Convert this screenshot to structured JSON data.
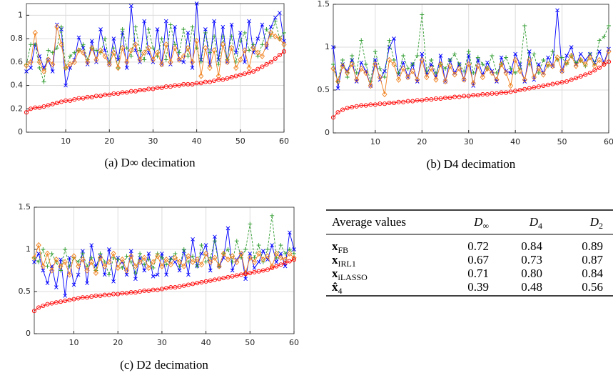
{
  "chart_data": [
    {
      "type": "line",
      "caption": "(a) D∞ decimation",
      "x": [
        1,
        2,
        3,
        4,
        5,
        6,
        7,
        8,
        9,
        10,
        11,
        12,
        13,
        14,
        15,
        16,
        17,
        18,
        19,
        20,
        21,
        22,
        23,
        24,
        25,
        26,
        27,
        28,
        29,
        30,
        31,
        32,
        33,
        34,
        35,
        36,
        37,
        38,
        39,
        40,
        41,
        42,
        43,
        44,
        45,
        46,
        47,
        48,
        49,
        50,
        51,
        52,
        53,
        54,
        55,
        56,
        57,
        58,
        59,
        60
      ],
      "xlim": [
        1,
        60
      ],
      "xticks": [
        10,
        20,
        30,
        40,
        50,
        60
      ],
      "ylim": [
        0,
        1.1
      ],
      "yticks": [
        0,
        0.2,
        0.4,
        0.6,
        0.8,
        1
      ],
      "grid": true,
      "series": [
        {
          "color": "#0000ff",
          "marker": "x",
          "dashed": false,
          "values": [
            0.52,
            0.55,
            0.75,
            0.65,
            0.55,
            0.62,
            0.52,
            0.92,
            0.88,
            0.4,
            0.55,
            0.62,
            0.81,
            0.72,
            0.58,
            0.78,
            0.6,
            0.88,
            0.7,
            0.58,
            0.8,
            0.62,
            0.85,
            0.55,
            1.08,
            0.7,
            0.6,
            0.95,
            0.68,
            0.6,
            0.88,
            0.58,
            0.95,
            0.58,
            0.9,
            0.62,
            0.6,
            0.85,
            0.55,
            1.1,
            0.62,
            0.88,
            0.58,
            0.95,
            0.62,
            0.9,
            0.6,
            0.92,
            0.68,
            0.85,
            0.6,
            0.95,
            0.68,
            0.8,
            0.92,
            0.72,
            0.9,
            0.98,
            1.02,
            0.78
          ]
        },
        {
          "color": "#2e9b2e",
          "marker": "plus",
          "dashed": true,
          "values": [
            0.58,
            0.75,
            0.75,
            0.55,
            0.43,
            0.7,
            0.68,
            0.72,
            0.9,
            0.55,
            0.65,
            0.68,
            0.7,
            0.75,
            0.62,
            0.72,
            0.7,
            0.68,
            0.8,
            0.6,
            0.72,
            0.55,
            0.88,
            0.72,
            0.65,
            0.9,
            0.7,
            0.62,
            0.88,
            0.72,
            0.65,
            0.8,
            0.62,
            0.92,
            0.75,
            0.68,
            0.88,
            0.65,
            0.9,
            0.72,
            0.6,
            0.85,
            0.68,
            0.82,
            0.58,
            0.82,
            0.62,
            0.82,
            0.6,
            0.78,
            0.85,
            0.7,
            0.75,
            0.65,
            0.75,
            0.88,
            0.82,
            0.95,
            0.8,
            0.85
          ]
        },
        {
          "color": "#f07f1a",
          "marker": "diamond",
          "dashed": false,
          "values": [
            0.57,
            0.6,
            0.85,
            0.6,
            0.52,
            0.62,
            0.58,
            0.9,
            0.75,
            0.55,
            0.58,
            0.6,
            0.7,
            0.68,
            0.6,
            0.72,
            0.62,
            0.7,
            0.65,
            0.58,
            0.68,
            0.55,
            0.72,
            0.6,
            0.7,
            0.75,
            0.62,
            0.68,
            0.72,
            0.62,
            0.68,
            0.58,
            0.75,
            0.6,
            0.72,
            0.62,
            0.65,
            0.72,
            0.6,
            0.78,
            0.48,
            0.72,
            0.55,
            0.7,
            0.48,
            0.75,
            0.6,
            0.72,
            0.55,
            0.62,
            0.7,
            0.55,
            0.72,
            0.68,
            0.65,
            0.75,
            0.85,
            0.82,
            0.8,
            0.75
          ]
        },
        {
          "color": "#ff0000",
          "marker": "circle",
          "dashed": false,
          "values": [
            0.17,
            0.2,
            0.21,
            0.21,
            0.22,
            0.23,
            0.24,
            0.25,
            0.26,
            0.27,
            0.27,
            0.28,
            0.29,
            0.29,
            0.3,
            0.3,
            0.31,
            0.31,
            0.32,
            0.32,
            0.33,
            0.33,
            0.34,
            0.34,
            0.35,
            0.35,
            0.36,
            0.36,
            0.37,
            0.37,
            0.38,
            0.38,
            0.39,
            0.39,
            0.4,
            0.4,
            0.41,
            0.41,
            0.41,
            0.42,
            0.42,
            0.43,
            0.43,
            0.44,
            0.45,
            0.45,
            0.46,
            0.47,
            0.48,
            0.49,
            0.5,
            0.51,
            0.52,
            0.54,
            0.56,
            0.58,
            0.6,
            0.63,
            0.66,
            0.69
          ]
        }
      ]
    },
    {
      "type": "line",
      "caption": "(b) D4 decimation",
      "x": [
        1,
        2,
        3,
        4,
        5,
        6,
        7,
        8,
        9,
        10,
        11,
        12,
        13,
        14,
        15,
        16,
        17,
        18,
        19,
        20,
        21,
        22,
        23,
        24,
        25,
        26,
        27,
        28,
        29,
        30,
        31,
        32,
        33,
        34,
        35,
        36,
        37,
        38,
        39,
        40,
        41,
        42,
        43,
        44,
        45,
        46,
        47,
        48,
        49,
        50,
        51,
        52,
        53,
        54,
        55,
        56,
        57,
        58,
        59,
        60
      ],
      "xlim": [
        1,
        60
      ],
      "xticks": [
        10,
        20,
        30,
        40,
        50,
        60
      ],
      "ylim": [
        0,
        1.5
      ],
      "yticks": [
        0,
        0.5,
        1,
        1.5
      ],
      "grid": true,
      "series": [
        {
          "color": "#0000ff",
          "marker": "x",
          "dashed": false,
          "values": [
            1.0,
            0.52,
            0.8,
            0.72,
            0.85,
            0.6,
            0.82,
            0.72,
            0.55,
            0.85,
            0.62,
            0.72,
            1.0,
            1.1,
            0.68,
            0.82,
            0.65,
            0.8,
            0.6,
            0.92,
            0.68,
            0.8,
            0.65,
            0.9,
            0.6,
            0.85,
            0.7,
            0.8,
            0.62,
            0.9,
            0.55,
            0.85,
            0.68,
            0.82,
            0.72,
            0.6,
            0.88,
            0.72,
            0.7,
            0.92,
            0.8,
            0.6,
            0.95,
            0.62,
            0.8,
            0.7,
            0.88,
            0.78,
            1.43,
            0.72,
            0.9,
            1.0,
            0.8,
            0.92,
            0.85,
            0.92,
            0.82,
            0.95,
            0.82,
            0.98
          ]
        },
        {
          "color": "#2e9b2e",
          "marker": "plus",
          "dashed": true,
          "values": [
            0.8,
            0.6,
            0.85,
            0.65,
            0.9,
            0.7,
            1.08,
            0.8,
            0.6,
            0.95,
            0.75,
            0.65,
            1.08,
            0.85,
            0.7,
            0.9,
            0.75,
            0.8,
            0.9,
            1.38,
            0.72,
            0.85,
            0.7,
            0.8,
            0.75,
            0.85,
            0.92,
            0.8,
            0.72,
            0.95,
            0.7,
            0.88,
            0.8,
            0.75,
            0.9,
            0.7,
            0.8,
            0.88,
            0.75,
            0.7,
            0.75,
            1.25,
            0.8,
            0.92,
            0.7,
            0.85,
            0.78,
            0.95,
            0.85,
            0.88,
            0.8,
            0.9,
            0.82,
            0.85,
            0.78,
            0.92,
            0.8,
            1.08,
            1.12,
            1.25
          ]
        },
        {
          "color": "#f07f1a",
          "marker": "diamond",
          "dashed": false,
          "values": [
            0.75,
            0.6,
            0.78,
            0.7,
            0.8,
            0.62,
            0.75,
            0.7,
            0.55,
            0.8,
            0.65,
            0.45,
            0.85,
            0.8,
            0.62,
            0.75,
            0.65,
            0.72,
            0.62,
            0.85,
            0.65,
            0.75,
            0.62,
            0.8,
            0.6,
            0.78,
            0.68,
            0.75,
            0.62,
            0.8,
            0.58,
            0.78,
            0.65,
            0.75,
            0.7,
            0.62,
            0.8,
            0.7,
            0.55,
            0.85,
            0.72,
            0.62,
            0.85,
            0.65,
            0.75,
            0.68,
            0.8,
            0.78,
            0.88,
            0.72,
            0.82,
            0.9,
            0.78,
            0.85,
            0.8,
            0.88,
            0.78,
            0.85,
            0.8,
            0.95
          ]
        },
        {
          "color": "#ff0000",
          "marker": "circle",
          "dashed": false,
          "values": [
            0.18,
            0.24,
            0.27,
            0.29,
            0.3,
            0.31,
            0.32,
            0.32,
            0.33,
            0.33,
            0.34,
            0.34,
            0.35,
            0.35,
            0.36,
            0.36,
            0.37,
            0.37,
            0.38,
            0.38,
            0.39,
            0.39,
            0.4,
            0.4,
            0.41,
            0.41,
            0.42,
            0.42,
            0.43,
            0.43,
            0.44,
            0.44,
            0.45,
            0.45,
            0.46,
            0.46,
            0.47,
            0.47,
            0.48,
            0.49,
            0.5,
            0.51,
            0.52,
            0.53,
            0.54,
            0.55,
            0.56,
            0.57,
            0.58,
            0.59,
            0.6,
            0.62,
            0.64,
            0.66,
            0.68,
            0.7,
            0.73,
            0.76,
            0.8,
            0.83
          ]
        }
      ]
    },
    {
      "type": "line",
      "caption": "(c) D2 decimation",
      "x": [
        1,
        2,
        3,
        4,
        5,
        6,
        7,
        8,
        9,
        10,
        11,
        12,
        13,
        14,
        15,
        16,
        17,
        18,
        19,
        20,
        21,
        22,
        23,
        24,
        25,
        26,
        27,
        28,
        29,
        30,
        31,
        32,
        33,
        34,
        35,
        36,
        37,
        38,
        39,
        40,
        41,
        42,
        43,
        44,
        45,
        46,
        47,
        48,
        49,
        50,
        51,
        52,
        53,
        54,
        55,
        56,
        57,
        58,
        59,
        60
      ],
      "xlim": [
        1,
        60
      ],
      "xticks": [
        10,
        20,
        30,
        40,
        50,
        60
      ],
      "ylim": [
        0,
        1.5
      ],
      "yticks": [
        0,
        0.5,
        1,
        1.5
      ],
      "grid": true,
      "series": [
        {
          "color": "#0000ff",
          "marker": "x",
          "dashed": false,
          "values": [
            0.85,
            0.95,
            0.75,
            0.6,
            0.8,
            0.55,
            0.88,
            0.45,
            0.9,
            0.58,
            0.7,
            0.98,
            0.6,
            1.05,
            0.8,
            0.92,
            0.7,
            1.0,
            0.62,
            0.9,
            0.85,
            0.7,
            0.98,
            0.65,
            0.9,
            0.75,
            0.95,
            0.68,
            0.7,
            0.95,
            0.7,
            0.9,
            0.85,
            0.75,
            0.98,
            0.7,
            1.12,
            0.8,
            0.95,
            1.05,
            0.75,
            1.15,
            0.8,
            0.9,
            1.25,
            0.75,
            0.88,
            0.95,
            0.65,
            0.95,
            0.78,
            0.85,
            0.98,
            0.88,
            1.05,
            0.85,
            0.95,
            0.8,
            1.2,
            1.0
          ]
        },
        {
          "color": "#2e9b2e",
          "marker": "plus",
          "dashed": true,
          "values": [
            0.9,
            0.85,
            1.0,
            0.8,
            0.95,
            0.85,
            0.75,
            1.0,
            0.8,
            0.9,
            0.85,
            0.95,
            0.8,
            0.9,
            0.75,
            0.95,
            0.85,
            0.7,
            0.9,
            0.88,
            0.78,
            0.92,
            0.85,
            0.72,
            0.95,
            0.82,
            0.88,
            0.78,
            0.95,
            0.9,
            0.82,
            0.88,
            0.95,
            0.8,
            1.0,
            0.85,
            0.92,
            0.8,
            1.05,
            0.85,
            0.9,
            1.1,
            0.8,
            0.95,
            1.0,
            0.85,
            1.1,
            0.9,
            1.0,
            1.3,
            0.9,
            1.05,
            0.85,
            1.0,
            1.4,
            0.9,
            1.05,
            0.95,
            1.0,
            0.95
          ]
        },
        {
          "color": "#f07f1a",
          "marker": "diamond",
          "dashed": false,
          "values": [
            0.9,
            1.05,
            0.8,
            0.95,
            0.75,
            0.88,
            0.8,
            0.85,
            0.7,
            0.92,
            0.8,
            0.88,
            0.75,
            0.85,
            0.72,
            0.9,
            0.8,
            0.85,
            0.95,
            0.78,
            0.88,
            0.75,
            0.92,
            0.8,
            0.85,
            0.9,
            0.78,
            0.85,
            0.92,
            0.8,
            0.88,
            0.82,
            0.9,
            0.85,
            0.8,
            0.92,
            0.85,
            0.88,
            0.82,
            0.95,
            0.85,
            0.9,
            0.8,
            0.95,
            0.88,
            0.92,
            0.85,
            0.95,
            0.72,
            0.9,
            0.85,
            0.95,
            0.88,
            0.92,
            0.8,
            0.95,
            0.9,
            0.88,
            0.95,
            0.9
          ]
        },
        {
          "color": "#ff0000",
          "marker": "circle",
          "dashed": false,
          "values": [
            0.27,
            0.31,
            0.33,
            0.35,
            0.36,
            0.37,
            0.38,
            0.39,
            0.4,
            0.41,
            0.42,
            0.43,
            0.43,
            0.44,
            0.45,
            0.45,
            0.46,
            0.46,
            0.47,
            0.47,
            0.48,
            0.48,
            0.49,
            0.49,
            0.5,
            0.51,
            0.51,
            0.52,
            0.52,
            0.53,
            0.54,
            0.55,
            0.55,
            0.56,
            0.57,
            0.58,
            0.59,
            0.6,
            0.61,
            0.62,
            0.63,
            0.64,
            0.65,
            0.66,
            0.67,
            0.68,
            0.69,
            0.7,
            0.71,
            0.72,
            0.73,
            0.74,
            0.75,
            0.76,
            0.78,
            0.8,
            0.82,
            0.84,
            0.86,
            0.88
          ]
        }
      ]
    }
  ],
  "table": {
    "header": [
      {
        "label": "Average values"
      },
      {
        "label": "D",
        "sub": "∞"
      },
      {
        "label": "D",
        "sub": "4"
      },
      {
        "label": "D",
        "sub": "2"
      }
    ],
    "rows": [
      {
        "label": "x",
        "sub": "FB",
        "values": [
          "0.72",
          "0.84",
          "0.89"
        ]
      },
      {
        "label": "x",
        "sub": "IRL1",
        "values": [
          "0.67",
          "0.73",
          "0.87"
        ]
      },
      {
        "label": "x",
        "sub": "iLASSO",
        "values": [
          "0.71",
          "0.80",
          "0.84"
        ]
      },
      {
        "label": "x̂",
        "sub": "4",
        "values": [
          "0.39",
          "0.48",
          "0.56"
        ]
      }
    ]
  }
}
